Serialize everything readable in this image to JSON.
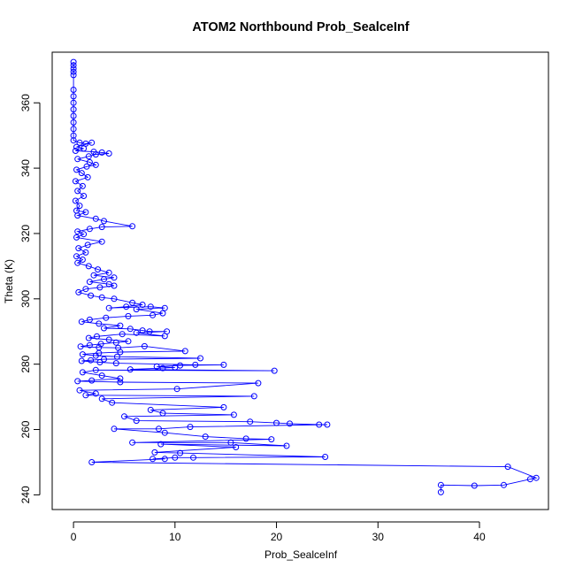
{
  "chart_data": {
    "type": "scatter",
    "title": "ATOM2 Northbound Prob_SealceInf",
    "xlabel": "Prob_SealceInf",
    "ylabel": "Theta (K)",
    "xlim": [
      -2.1,
      46.8
    ],
    "ylim": [
      235.5,
      375.5
    ],
    "x_ticks": [
      0,
      10,
      20,
      30,
      40
    ],
    "y_ticks": [
      240,
      260,
      280,
      300,
      320,
      340,
      360
    ],
    "colors": {
      "series": "#0000ff",
      "axis": "#000000",
      "background": "#ffffff"
    },
    "series": [
      {
        "name": "Prob_SealceInf",
        "connected": true,
        "marker": "open-circle",
        "points": [
          [
            0.0,
            372.5
          ],
          [
            0.0,
            371.5
          ],
          [
            0.0,
            370.5
          ],
          [
            0.0,
            369.5
          ],
          [
            0.0,
            368.5
          ],
          [
            0.0,
            364.0
          ],
          [
            0.0,
            362.0
          ],
          [
            0.0,
            360.0
          ],
          [
            0.0,
            358.0
          ],
          [
            0.0,
            356.0
          ],
          [
            0.0,
            354.0
          ],
          [
            0.0,
            352.0
          ],
          [
            0.0,
            350.0
          ],
          [
            0.0,
            348.5
          ],
          [
            0.6,
            347.8
          ],
          [
            1.2,
            347.5
          ],
          [
            1.8,
            347.8
          ],
          [
            0.3,
            346.5
          ],
          [
            1.0,
            346.0
          ],
          [
            0.2,
            345.3
          ],
          [
            2.0,
            345.0
          ],
          [
            2.8,
            344.8
          ],
          [
            3.5,
            344.5
          ],
          [
            2.2,
            344.2
          ],
          [
            1.5,
            343.6
          ],
          [
            0.4,
            342.8
          ],
          [
            1.6,
            341.8
          ],
          [
            2.2,
            341.0
          ],
          [
            1.3,
            340.5
          ],
          [
            0.3,
            339.5
          ],
          [
            0.8,
            338.5
          ],
          [
            1.4,
            337.2
          ],
          [
            0.2,
            336.0
          ],
          [
            0.9,
            334.5
          ],
          [
            0.4,
            333.0
          ],
          [
            1.0,
            331.5
          ],
          [
            0.2,
            330.0
          ],
          [
            0.6,
            328.5
          ],
          [
            0.3,
            327.0
          ],
          [
            1.2,
            326.5
          ],
          [
            0.4,
            325.5
          ],
          [
            2.2,
            324.5
          ],
          [
            3.0,
            323.8
          ],
          [
            5.8,
            322.2
          ],
          [
            2.8,
            322.0
          ],
          [
            1.6,
            321.4
          ],
          [
            0.4,
            320.6
          ],
          [
            1.0,
            319.8
          ],
          [
            0.3,
            318.8
          ],
          [
            2.8,
            317.5
          ],
          [
            1.4,
            316.5
          ],
          [
            0.5,
            315.5
          ],
          [
            1.2,
            314.2
          ],
          [
            0.3,
            313.0
          ],
          [
            0.9,
            312.0
          ],
          [
            0.4,
            311.0
          ],
          [
            1.5,
            310.0
          ],
          [
            2.4,
            309.0
          ],
          [
            3.5,
            308.0
          ],
          [
            2.0,
            307.2
          ],
          [
            4.0,
            306.5
          ],
          [
            3.0,
            306.0
          ],
          [
            1.6,
            305.2
          ],
          [
            3.5,
            304.5
          ],
          [
            4.0,
            304.0
          ],
          [
            2.6,
            303.5
          ],
          [
            1.2,
            303.0
          ],
          [
            0.5,
            302.0
          ],
          [
            1.7,
            301.0
          ],
          [
            2.8,
            300.4
          ],
          [
            4.0,
            300.0
          ],
          [
            5.8,
            298.8
          ],
          [
            6.8,
            298.2
          ],
          [
            5.2,
            297.6
          ],
          [
            3.5,
            297.2
          ],
          [
            7.6,
            297.6
          ],
          [
            9.0,
            297.2
          ],
          [
            6.2,
            296.8
          ],
          [
            8.8,
            295.6
          ],
          [
            7.8,
            295.0
          ],
          [
            5.4,
            294.7
          ],
          [
            3.2,
            294.2
          ],
          [
            1.6,
            293.6
          ],
          [
            0.8,
            293.0
          ],
          [
            2.5,
            292.4
          ],
          [
            4.6,
            291.8
          ],
          [
            3.0,
            291.0
          ],
          [
            5.6,
            290.8
          ],
          [
            6.8,
            290.3
          ],
          [
            7.5,
            290.0
          ],
          [
            9.2,
            290.0
          ],
          [
            6.2,
            289.6
          ],
          [
            9.0,
            288.6
          ],
          [
            4.8,
            289.2
          ],
          [
            2.3,
            288.5
          ],
          [
            1.5,
            288.0
          ],
          [
            3.5,
            287.5
          ],
          [
            5.4,
            287.0
          ],
          [
            4.2,
            286.6
          ],
          [
            2.7,
            286.2
          ],
          [
            1.6,
            285.8
          ],
          [
            0.7,
            285.4
          ],
          [
            2.5,
            285.1
          ],
          [
            4.4,
            285.0
          ],
          [
            7.0,
            285.5
          ],
          [
            11.0,
            284.0
          ],
          [
            4.6,
            283.7
          ],
          [
            2.5,
            283.4
          ],
          [
            0.9,
            283.0
          ],
          [
            2.2,
            282.6
          ],
          [
            4.3,
            282.3
          ],
          [
            12.5,
            281.8
          ],
          [
            3.0,
            281.5
          ],
          [
            1.7,
            281.2
          ],
          [
            0.8,
            281.0
          ],
          [
            2.6,
            280.6
          ],
          [
            4.2,
            280.3
          ],
          [
            12.0,
            279.8
          ],
          [
            14.8,
            279.8
          ],
          [
            10.5,
            279.6
          ],
          [
            8.2,
            279.3
          ],
          [
            10.0,
            279.0
          ],
          [
            8.8,
            278.8
          ],
          [
            5.6,
            278.4
          ],
          [
            19.8,
            278.0
          ],
          [
            2.2,
            278.2
          ],
          [
            0.9,
            277.5
          ],
          [
            2.8,
            276.5
          ],
          [
            4.6,
            275.6
          ],
          [
            1.8,
            275.0
          ],
          [
            0.4,
            274.8
          ],
          [
            4.6,
            274.5
          ],
          [
            18.2,
            274.2
          ],
          [
            10.2,
            272.4
          ],
          [
            0.6,
            272.0
          ],
          [
            2.2,
            271.0
          ],
          [
            1.2,
            270.5
          ],
          [
            17.8,
            270.2
          ],
          [
            2.8,
            269.4
          ],
          [
            3.8,
            268.2
          ],
          [
            14.8,
            266.8
          ],
          [
            7.6,
            266.0
          ],
          [
            8.8,
            265.0
          ],
          [
            15.8,
            264.5
          ],
          [
            5.0,
            264.0
          ],
          [
            6.2,
            262.7
          ],
          [
            17.4,
            262.4
          ],
          [
            20.0,
            262.0
          ],
          [
            21.3,
            261.8
          ],
          [
            24.2,
            261.5
          ],
          [
            25.0,
            261.5
          ],
          [
            11.5,
            260.8
          ],
          [
            8.4,
            260.2
          ],
          [
            4.0,
            260.2
          ],
          [
            9.0,
            259.0
          ],
          [
            13.0,
            257.8
          ],
          [
            17.0,
            257.2
          ],
          [
            19.5,
            257.0
          ],
          [
            5.8,
            256.0
          ],
          [
            15.5,
            256.0
          ],
          [
            21.0,
            255.0
          ],
          [
            8.6,
            255.5
          ],
          [
            16.0,
            254.6
          ],
          [
            8.0,
            253.0
          ],
          [
            10.5,
            252.8
          ],
          [
            24.8,
            251.6
          ],
          [
            11.8,
            251.4
          ],
          [
            10.0,
            251.4
          ],
          [
            7.8,
            251.0
          ],
          [
            9.0,
            251.0
          ],
          [
            1.8,
            250.0
          ],
          [
            42.8,
            248.6
          ],
          [
            45.6,
            245.2
          ],
          [
            45.0,
            244.8
          ],
          [
            42.4,
            243.0
          ],
          [
            39.5,
            242.8
          ],
          [
            36.2,
            243.0
          ],
          [
            36.2,
            240.8
          ]
        ]
      }
    ]
  }
}
